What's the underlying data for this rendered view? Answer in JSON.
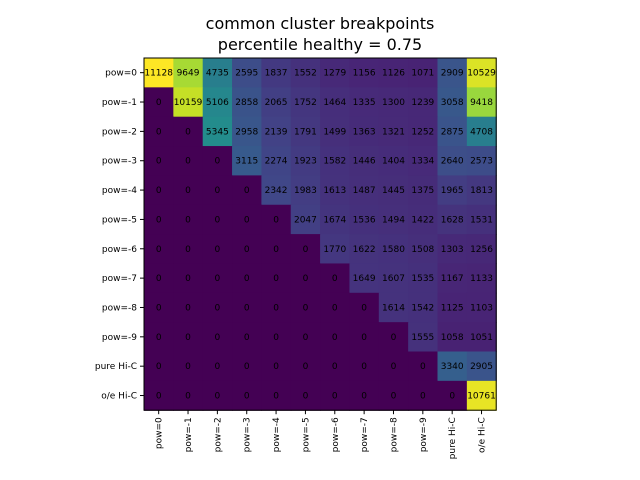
{
  "chart_data": {
    "type": "heatmap",
    "title_line1": "common cluster breakpoints",
    "title_line2": "percentile healthy = 0.75",
    "row_labels": [
      "pow=0",
      "pow=-1",
      "pow=-2",
      "pow=-3",
      "pow=-4",
      "pow=-5",
      "pow=-6",
      "pow=-7",
      "pow=-8",
      "pow=-9",
      "pure Hi-C",
      "o/e Hi-C"
    ],
    "col_labels": [
      "pow=0",
      "pow=-1",
      "pow=-2",
      "pow=-3",
      "pow=-4",
      "pow=-5",
      "pow=-6",
      "pow=-7",
      "pow=-8",
      "pow=-9",
      "pure Hi-C",
      "o/e Hi-C"
    ],
    "values": [
      [
        11128,
        9649,
        4735,
        2595,
        1837,
        1552,
        1279,
        1156,
        1126,
        1071,
        2909,
        10529
      ],
      [
        0,
        10159,
        5106,
        2858,
        2065,
        1752,
        1464,
        1335,
        1300,
        1239,
        3058,
        9418
      ],
      [
        0,
        0,
        5345,
        2958,
        2139,
        1791,
        1499,
        1363,
        1321,
        1252,
        2875,
        4708
      ],
      [
        0,
        0,
        0,
        3115,
        2274,
        1923,
        1582,
        1446,
        1404,
        1334,
        2640,
        2573
      ],
      [
        0,
        0,
        0,
        0,
        2342,
        1983,
        1613,
        1487,
        1445,
        1375,
        1965,
        1813
      ],
      [
        0,
        0,
        0,
        0,
        0,
        2047,
        1674,
        1536,
        1494,
        1422,
        1628,
        1531
      ],
      [
        0,
        0,
        0,
        0,
        0,
        0,
        1770,
        1622,
        1580,
        1508,
        1303,
        1256
      ],
      [
        0,
        0,
        0,
        0,
        0,
        0,
        0,
        1649,
        1607,
        1535,
        1167,
        1133
      ],
      [
        0,
        0,
        0,
        0,
        0,
        0,
        0,
        0,
        1614,
        1542,
        1125,
        1103
      ],
      [
        0,
        0,
        0,
        0,
        0,
        0,
        0,
        0,
        0,
        1555,
        1058,
        1051
      ],
      [
        0,
        0,
        0,
        0,
        0,
        0,
        0,
        0,
        0,
        0,
        3340,
        2905
      ],
      [
        0,
        0,
        0,
        0,
        0,
        0,
        0,
        0,
        0,
        0,
        0,
        10761
      ]
    ],
    "colormap": "viridis",
    "value_range": [
      0,
      11128
    ]
  }
}
